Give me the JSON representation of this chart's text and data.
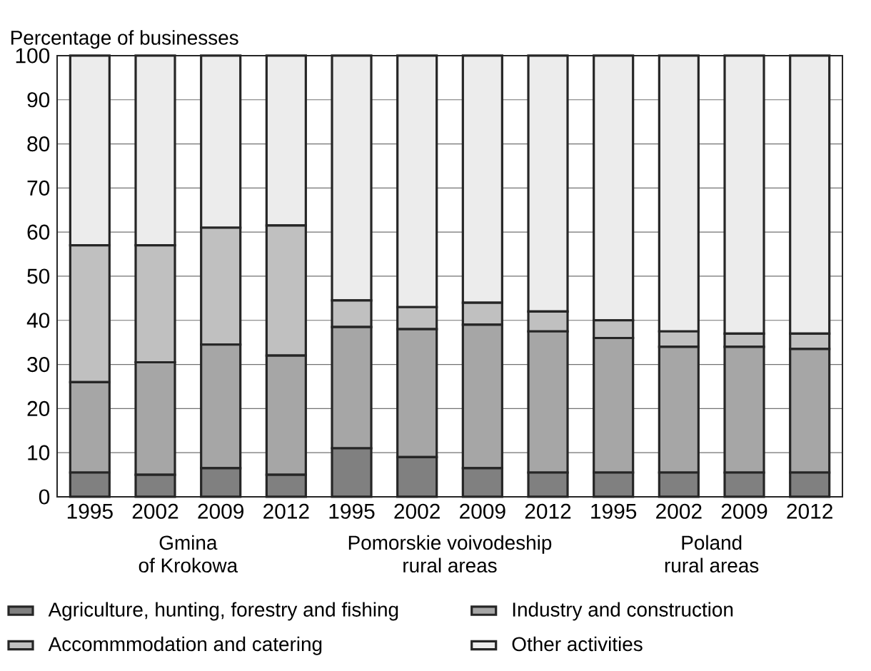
{
  "chart_data": {
    "type": "bar",
    "stacked": true,
    "ylabel": "Percentage of businesses",
    "categories": [
      "1995",
      "2002",
      "2009",
      "2012",
      "1995",
      "2002",
      "2009",
      "2012",
      "1995",
      "2002",
      "2009",
      "2012"
    ],
    "series": [
      {
        "name": "Agriculture, hunting, forestry and fishing",
        "color": "#808080",
        "values": [
          5.5,
          5,
          6.5,
          5,
          11,
          9,
          6.5,
          5.5,
          5.5,
          5.5,
          5.5,
          5.5
        ]
      },
      {
        "name": "Industry and construction",
        "color": "#a6a6a6",
        "values": [
          20.5,
          25.5,
          28,
          27,
          27.5,
          29,
          32.5,
          32,
          30.5,
          28.5,
          28.5,
          28
        ]
      },
      {
        "name": "Accommmodation and catering",
        "color": "#c0c0c0",
        "values": [
          31,
          26.5,
          26.5,
          29.5,
          6,
          5,
          5,
          4.5,
          4,
          3.5,
          3,
          3.5
        ]
      },
      {
        "name": "Other activities",
        "color": "#ececec",
        "values": [
          43,
          43,
          39,
          38.5,
          55.5,
          57,
          56,
          58,
          60,
          62.5,
          63,
          63
        ]
      }
    ],
    "ylim": [
      0,
      100
    ],
    "yticks": [
      0,
      10,
      20,
      30,
      40,
      50,
      60,
      70,
      80,
      90,
      100
    ],
    "grid": "y",
    "legend": "bottom",
    "annotations": [
      "Gmina",
      "of Krokowa",
      "Pomorskie voivodeship",
      "rural areas",
      "Poland",
      "rural areas"
    ]
  }
}
